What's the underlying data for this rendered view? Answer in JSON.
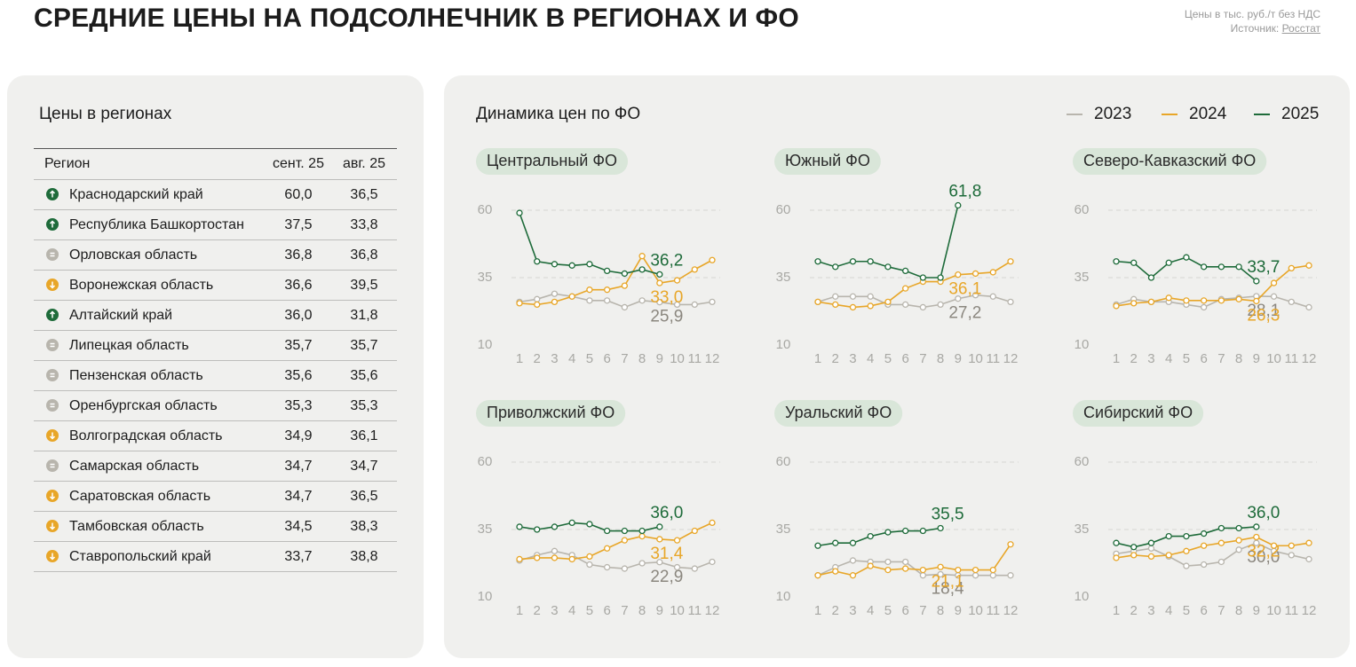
{
  "header": {
    "title": "СРЕДНИЕ ЦЕНЫ НА ПОДСОЛНЕЧНИК В РЕГИОНАХ И ФО",
    "note": "Цены в тыс. руб./т без НДС",
    "source_label": "Источник:",
    "source_link": "Росстат"
  },
  "table": {
    "title": "Цены в регионах",
    "columns": [
      "Регион",
      "сент. 25",
      "авг. 25"
    ],
    "trend_colors": {
      "up": "#1e6b3a",
      "eq": "#b8b5ad",
      "down": "#e8a628"
    },
    "rows": [
      {
        "trend": "up",
        "cells": [
          "Краснодарский край",
          "60,0",
          "36,5"
        ]
      },
      {
        "trend": "up",
        "cells": [
          "Республика Башкортостан",
          "37,5",
          "33,8"
        ]
      },
      {
        "trend": "eq",
        "cells": [
          "Орловская область",
          "36,8",
          "36,8"
        ]
      },
      {
        "trend": "down",
        "cells": [
          "Воронежская область",
          "36,6",
          "39,5"
        ]
      },
      {
        "trend": "up",
        "cells": [
          "Алтайский край",
          "36,0",
          "31,8"
        ]
      },
      {
        "trend": "eq",
        "cells": [
          "Липецкая область",
          "35,7",
          "35,7"
        ]
      },
      {
        "trend": "eq",
        "cells": [
          "Пензенская область",
          "35,6",
          "35,6"
        ]
      },
      {
        "trend": "eq",
        "cells": [
          "Оренбургская область",
          "35,3",
          "35,3"
        ]
      },
      {
        "trend": "down",
        "cells": [
          "Волгоградская область",
          "34,9",
          "36,1"
        ]
      },
      {
        "trend": "eq",
        "cells": [
          "Самарская область",
          "34,7",
          "34,7"
        ]
      },
      {
        "trend": "down",
        "cells": [
          "Саратовская область",
          "34,7",
          "36,5"
        ]
      },
      {
        "trend": "down",
        "cells": [
          "Тамбовская область",
          "34,5",
          "38,3"
        ]
      },
      {
        "trend": "down",
        "cells": [
          "Ставропольский край",
          "33,7",
          "38,8"
        ]
      }
    ]
  },
  "panel_title": "Динамика цен по ФО",
  "chart_data": [
    {
      "type": "line",
      "title": "Центральный ФО",
      "x": [
        1,
        2,
        3,
        4,
        5,
        6,
        7,
        8,
        9,
        10,
        11,
        12
      ],
      "xlim": [
        1,
        12
      ],
      "xticks": [
        1,
        2,
        3,
        4,
        5,
        6,
        7,
        8,
        9,
        10,
        11,
        12
      ],
      "ylim": [
        10,
        60
      ],
      "yticks": [
        10,
        35,
        60
      ],
      "grid": true,
      "series": [
        {
          "name": "2023",
          "color": "#b8b5ad",
          "label_color": "#8b877f",
          "values": [
            26,
            27,
            29,
            28,
            26.5,
            26.5,
            24,
            26.5,
            25.9,
            25,
            25,
            26
          ],
          "value_labels": [
            null,
            null,
            null,
            null,
            null,
            null,
            null,
            null,
            "25,9",
            null,
            null,
            null
          ]
        },
        {
          "name": "2024",
          "color": "#e8a628",
          "label_color": "#e8a628",
          "values": [
            25.5,
            25,
            26,
            28,
            30.5,
            30.5,
            32,
            43,
            33.0,
            34,
            38,
            41.5
          ],
          "value_labels": [
            null,
            null,
            null,
            null,
            null,
            null,
            null,
            null,
            "33,0",
            null,
            null,
            null
          ]
        },
        {
          "name": "2025",
          "color": "#1e6b3a",
          "label_color": "#1e6b3a",
          "values": [
            59,
            41,
            40,
            39.5,
            40,
            37.5,
            36.5,
            38,
            36.2,
            null,
            null,
            null
          ],
          "value_labels": [
            null,
            null,
            null,
            null,
            null,
            null,
            null,
            null,
            "36,2",
            null,
            null,
            null
          ]
        }
      ]
    },
    {
      "type": "line",
      "title": "Южный ФО",
      "x": [
        1,
        2,
        3,
        4,
        5,
        6,
        7,
        8,
        9,
        10,
        11,
        12
      ],
      "xlim": [
        1,
        12
      ],
      "xticks": [
        1,
        2,
        3,
        4,
        5,
        6,
        7,
        8,
        9,
        10,
        11,
        12
      ],
      "ylim": [
        10,
        60
      ],
      "yticks": [
        10,
        35,
        60
      ],
      "grid": true,
      "series": [
        {
          "name": "2023",
          "color": "#b8b5ad",
          "label_color": "#8b877f",
          "values": [
            26,
            28,
            28,
            28,
            25,
            25,
            24,
            25,
            27.2,
            28.5,
            28,
            26
          ],
          "value_labels": [
            null,
            null,
            null,
            null,
            null,
            null,
            null,
            null,
            "27,2",
            null,
            null,
            null
          ]
        },
        {
          "name": "2024",
          "color": "#e8a628",
          "label_color": "#e8a628",
          "values": [
            26,
            25,
            24,
            24.5,
            26,
            31,
            33.5,
            33.5,
            36.1,
            36.5,
            37,
            41
          ],
          "value_labels": [
            null,
            null,
            null,
            null,
            null,
            null,
            null,
            null,
            "36,1",
            null,
            null,
            null
          ]
        },
        {
          "name": "2025",
          "color": "#1e6b3a",
          "label_color": "#1e6b3a",
          "values": [
            41,
            39,
            41,
            41,
            39,
            37.5,
            35,
            35,
            61.8,
            null,
            null,
            null
          ],
          "value_labels": [
            null,
            null,
            null,
            null,
            null,
            null,
            null,
            null,
            "61,8",
            null,
            null,
            null
          ]
        }
      ]
    },
    {
      "type": "line",
      "title": "Северо-Кавказский ФО",
      "x": [
        1,
        2,
        3,
        4,
        5,
        6,
        7,
        8,
        9,
        10,
        11,
        12
      ],
      "xlim": [
        1,
        12
      ],
      "xticks": [
        1,
        2,
        3,
        4,
        5,
        6,
        7,
        8,
        9,
        10,
        11,
        12
      ],
      "ylim": [
        10,
        60
      ],
      "yticks": [
        10,
        35,
        60
      ],
      "grid": true,
      "series": [
        {
          "name": "2023",
          "color": "#b8b5ad",
          "label_color": "#8b877f",
          "values": [
            25,
            27,
            26,
            26,
            25,
            24,
            27,
            27.5,
            28.1,
            28,
            26,
            24
          ],
          "value_labels": [
            null,
            null,
            null,
            null,
            null,
            null,
            null,
            null,
            "28,1",
            null,
            null,
            null
          ]
        },
        {
          "name": "2024",
          "color": "#e8a628",
          "label_color": "#e8a628",
          "values": [
            24.5,
            25.5,
            26,
            27.5,
            26.5,
            26.5,
            26.5,
            27,
            26.3,
            33,
            38.5,
            39.5
          ],
          "value_labels": [
            null,
            null,
            null,
            null,
            null,
            null,
            null,
            null,
            "26,3",
            null,
            null,
            null
          ]
        },
        {
          "name": "2025",
          "color": "#1e6b3a",
          "label_color": "#1e6b3a",
          "values": [
            41,
            40.5,
            35,
            40.5,
            42.5,
            39,
            39,
            39,
            33.7,
            null,
            null,
            null
          ],
          "value_labels": [
            null,
            null,
            null,
            null,
            null,
            null,
            null,
            null,
            "33,7",
            null,
            null,
            null
          ]
        }
      ]
    },
    {
      "type": "line",
      "title": "Приволжский ФО",
      "x": [
        1,
        2,
        3,
        4,
        5,
        6,
        7,
        8,
        9,
        10,
        11,
        12
      ],
      "xlim": [
        1,
        12
      ],
      "xticks": [
        1,
        2,
        3,
        4,
        5,
        6,
        7,
        8,
        9,
        10,
        11,
        12
      ],
      "ylim": [
        10,
        60
      ],
      "yticks": [
        10,
        35,
        60
      ],
      "grid": true,
      "series": [
        {
          "name": "2023",
          "color": "#b8b5ad",
          "label_color": "#8b877f",
          "values": [
            23.5,
            25.5,
            27,
            25.5,
            22,
            21,
            20.5,
            22.5,
            22.9,
            21,
            20.5,
            23
          ],
          "value_labels": [
            null,
            null,
            null,
            null,
            null,
            null,
            null,
            null,
            "22,9",
            null,
            null,
            null
          ]
        },
        {
          "name": "2024",
          "color": "#e8a628",
          "label_color": "#e8a628",
          "values": [
            24,
            24.5,
            24.5,
            24,
            25,
            28,
            31,
            32.5,
            31.4,
            31,
            34.5,
            37.5
          ],
          "value_labels": [
            null,
            null,
            null,
            null,
            null,
            null,
            null,
            null,
            "31,4",
            null,
            null,
            null
          ]
        },
        {
          "name": "2025",
          "color": "#1e6b3a",
          "label_color": "#1e6b3a",
          "values": [
            36,
            35,
            36,
            37.5,
            37,
            34.5,
            34.5,
            34.5,
            36.0,
            null,
            null,
            null
          ],
          "value_labels": [
            null,
            null,
            null,
            null,
            null,
            null,
            null,
            null,
            "36,0",
            null,
            null,
            null
          ]
        }
      ]
    },
    {
      "type": "line",
      "title": "Уральский ФО",
      "x": [
        1,
        2,
        3,
        4,
        5,
        6,
        7,
        8,
        9,
        10,
        11,
        12
      ],
      "xlim": [
        1,
        12
      ],
      "xticks": [
        1,
        2,
        3,
        4,
        5,
        6,
        7,
        8,
        9,
        10,
        11,
        12
      ],
      "ylim": [
        10,
        60
      ],
      "yticks": [
        10,
        35,
        60
      ],
      "grid": true,
      "series": [
        {
          "name": "2023",
          "color": "#b8b5ad",
          "label_color": "#8b877f",
          "values": [
            18,
            21,
            23.5,
            23,
            23,
            23,
            18,
            18.4,
            18,
            18,
            18,
            18
          ],
          "value_labels": [
            null,
            null,
            null,
            null,
            null,
            null,
            null,
            "18,4",
            null,
            null,
            null,
            null
          ]
        },
        {
          "name": "2024",
          "color": "#e8a628",
          "label_color": "#e8a628",
          "values": [
            18,
            19.5,
            18,
            21.5,
            20,
            20.5,
            20,
            21.1,
            20,
            20,
            20,
            29.5
          ],
          "value_labels": [
            null,
            null,
            null,
            null,
            null,
            null,
            null,
            "21,1",
            null,
            null,
            null,
            null
          ]
        },
        {
          "name": "2025",
          "color": "#1e6b3a",
          "label_color": "#1e6b3a",
          "values": [
            29,
            30,
            30,
            32.5,
            34,
            34.5,
            34.5,
            35.5,
            null,
            null,
            null,
            null
          ],
          "value_labels": [
            null,
            null,
            null,
            null,
            null,
            null,
            null,
            "35,5",
            null,
            null,
            null,
            null
          ]
        }
      ]
    },
    {
      "type": "line",
      "title": "Сибирский ФО",
      "x": [
        1,
        2,
        3,
        4,
        5,
        6,
        7,
        8,
        9,
        10,
        11,
        12
      ],
      "xlim": [
        1,
        12
      ],
      "xticks": [
        1,
        2,
        3,
        4,
        5,
        6,
        7,
        8,
        9,
        10,
        11,
        12
      ],
      "ylim": [
        10,
        60
      ],
      "yticks": [
        10,
        35,
        60
      ],
      "grid": true,
      "series": [
        {
          "name": "2023",
          "color": "#b8b5ad",
          "label_color": "#8b877f",
          "values": [
            26,
            27,
            28,
            25,
            21.5,
            22,
            23,
            27.5,
            30.0,
            27,
            25.5,
            24
          ],
          "value_labels": [
            null,
            null,
            null,
            null,
            null,
            null,
            null,
            null,
            "30,0",
            null,
            null,
            null
          ]
        },
        {
          "name": "2024",
          "color": "#e8a628",
          "label_color": "#e8a628",
          "values": [
            24.5,
            25.5,
            25,
            25.5,
            27,
            29,
            30,
            31,
            32.2,
            29,
            29,
            30
          ],
          "value_labels": [
            null,
            null,
            null,
            null,
            null,
            null,
            null,
            null,
            "32,2",
            null,
            null,
            null
          ]
        },
        {
          "name": "2025",
          "color": "#1e6b3a",
          "label_color": "#1e6b3a",
          "values": [
            30,
            28.5,
            30,
            32.5,
            32.5,
            33.5,
            35.5,
            35.5,
            36.0,
            null,
            null,
            null
          ],
          "value_labels": [
            null,
            null,
            null,
            null,
            null,
            null,
            null,
            null,
            "36,0",
            null,
            null,
            null
          ]
        }
      ]
    }
  ]
}
